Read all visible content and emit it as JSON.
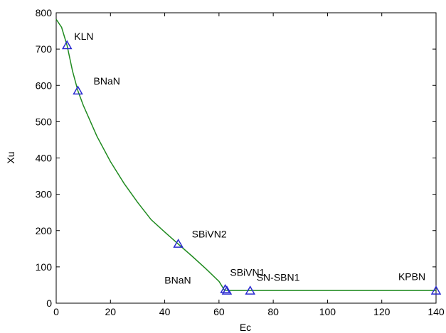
{
  "chart_data": {
    "type": "scatter",
    "xlabel": "Ec",
    "ylabel": "Xu",
    "xlim": [
      0,
      140
    ],
    "ylim": [
      0,
      800
    ],
    "x_ticks": [
      0,
      20,
      40,
      60,
      80,
      100,
      120,
      140
    ],
    "y_ticks": [
      0,
      100,
      200,
      300,
      400,
      500,
      600,
      700,
      800
    ],
    "x_tick_labels": [
      "0",
      "20",
      "40",
      "60",
      "80",
      "100",
      "120",
      "140"
    ],
    "y_tick_labels": [
      "0",
      "100",
      "200",
      "300",
      "400",
      "500",
      "600",
      "700",
      "800"
    ],
    "grid": false,
    "points": [
      {
        "label": "KLN",
        "x": 4,
        "y": 710
      },
      {
        "label": "BNaN",
        "x": 8,
        "y": 585
      },
      {
        "label": "SBiVN2",
        "x": 45,
        "y": 163
      },
      {
        "label": "BNaN",
        "x": 62.3,
        "y": 38
      },
      {
        "label": "SBiVN1",
        "x": 62.9,
        "y": 34
      },
      {
        "label": "SN-SBN1",
        "x": 71.5,
        "y": 34
      },
      {
        "label": "KPBN",
        "x": 140,
        "y": 34
      }
    ],
    "curve": {
      "x": [
        0,
        2,
        4,
        6,
        8,
        10,
        15,
        20,
        25,
        30,
        35,
        40,
        45,
        50,
        55,
        60,
        62,
        64,
        80,
        100,
        120,
        140
      ],
      "y": [
        782,
        760,
        710,
        640,
        585,
        545,
        460,
        390,
        330,
        278,
        230,
        196,
        163,
        130,
        96,
        60,
        36,
        35,
        35,
        35,
        35,
        35
      ]
    },
    "colors": {
      "curve": "#1f8a1f",
      "marker": "#2a2ad0",
      "axis": "#000000"
    }
  }
}
